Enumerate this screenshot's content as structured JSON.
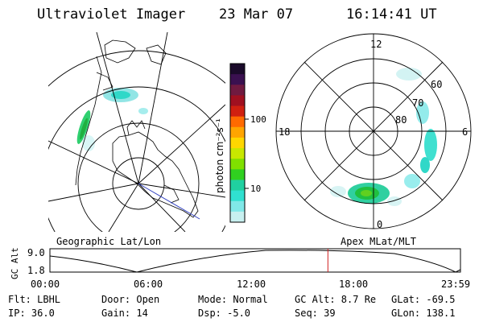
{
  "header": {
    "title": "Ultraviolet Imager",
    "date": "23 Mar 07",
    "time": "16:14:41 UT"
  },
  "colorbar": {
    "unit_label": "photon cm⁻²s⁻¹",
    "ticks": [
      "100",
      "10"
    ],
    "colors": [
      "#1a0a2a",
      "#3a1050",
      "#701a40",
      "#a01020",
      "#d02010",
      "#ff6a00",
      "#ffa500",
      "#ffd700",
      "#c8e800",
      "#80e000",
      "#30d020",
      "#20d0a0",
      "#30e0d0",
      "#80e8e8",
      "#c8f0f0"
    ]
  },
  "left_map": {
    "caption": "Geographic Lat/Lon"
  },
  "right_map": {
    "caption": "Apex MLat/MLT",
    "mlt_labels": {
      "top": "12",
      "left": "18",
      "right": "6",
      "bottom": "0"
    },
    "lat_labels": [
      "60",
      "70",
      "80"
    ]
  },
  "altitude_plot": {
    "axis_label": "GC Alt",
    "y_ticks": [
      "9.0",
      "1.8"
    ],
    "x_ticks": [
      "00:00",
      "06:00",
      "12:00",
      "18:00",
      "23:59"
    ],
    "current_time_hours": 16.24
  },
  "info": {
    "flt": "Flt: LBHL",
    "door": "Door: Open",
    "mode": "Mode: Normal",
    "gc_alt": "GC Alt: 8.7 Re",
    "glat": "GLat: -69.5",
    "ip": "IP: 36.0",
    "gain": "Gain: 14",
    "dsp": "Dsp:   -5.0",
    "seq": "Seq: 39",
    "glon": "GLon: 138.1"
  }
}
